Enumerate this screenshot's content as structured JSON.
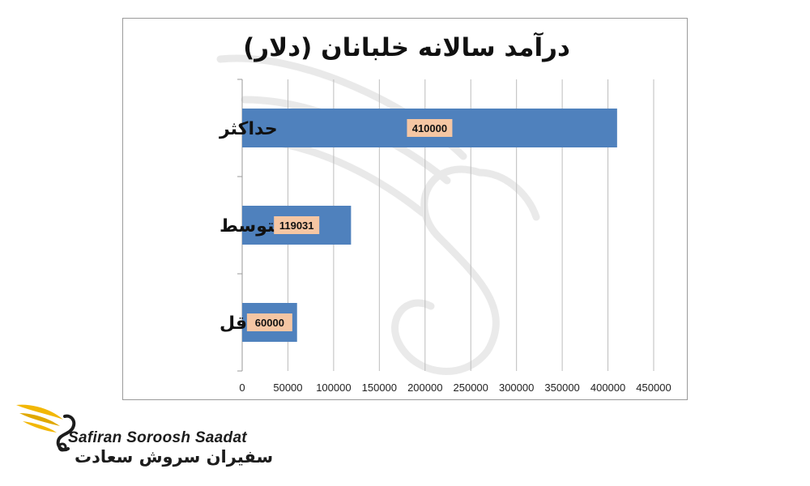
{
  "chart_data": {
    "type": "bar",
    "orientation": "horizontal",
    "title": "درآمد سالانه خلبانان (دلار)",
    "categories": [
      "حداکثر",
      "حد متوسط",
      "حداقل"
    ],
    "values": [
      410000,
      119031,
      60000
    ],
    "data_labels": [
      "410000",
      "119031",
      "60000"
    ],
    "xlim": [
      0,
      450000
    ],
    "x_ticks": [
      "0",
      "50000",
      "100000",
      "150000",
      "200000",
      "250000",
      "300000",
      "350000",
      "400000",
      "450000"
    ],
    "grid": "vertical",
    "legend": "none"
  },
  "colors": {
    "bar": "#4f81bd",
    "data_label_bg": "#f5c6a3",
    "grid": "#bdbdbd",
    "logo_gold": "#f2b705"
  },
  "branding": {
    "name_latin": "Safiran Soroosh Saadat",
    "name_farsi": "سفیران سروش سعادت",
    "logo_icon": "golden-wing-swan-icon",
    "watermark_icon": "swan-watermark-icon"
  }
}
